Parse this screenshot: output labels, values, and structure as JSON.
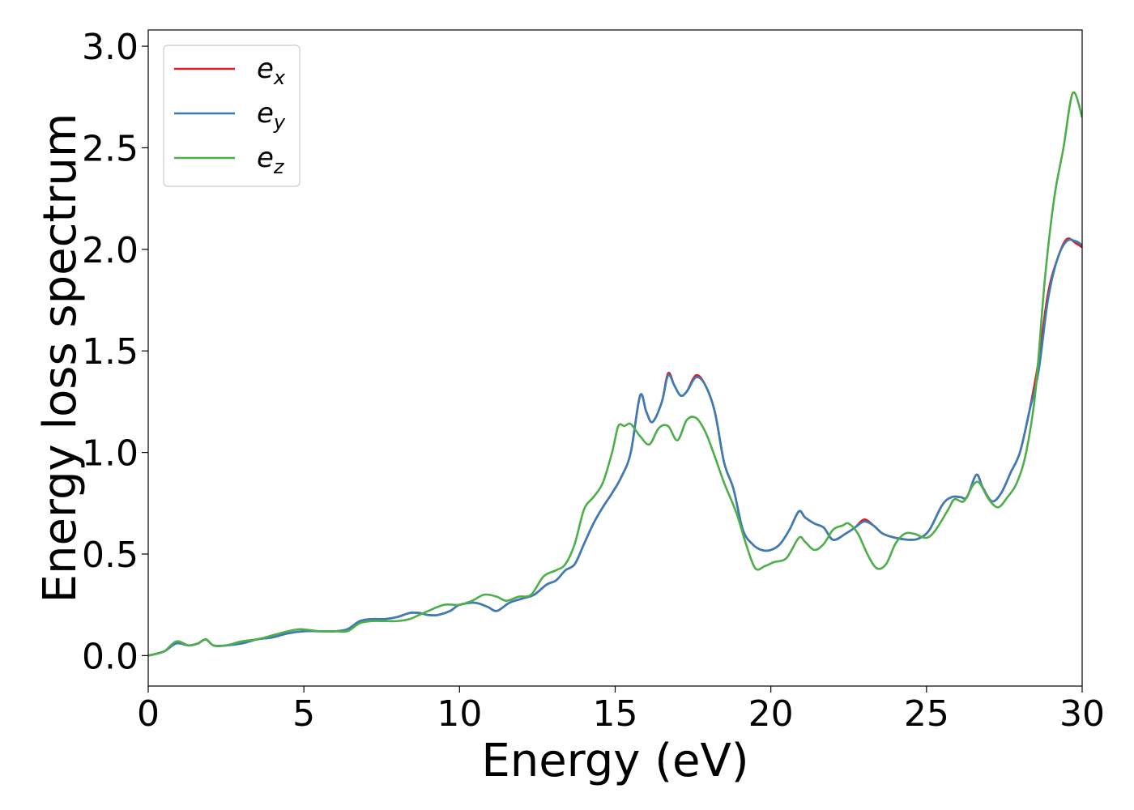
{
  "chart_data": {
    "type": "line",
    "xlabel": "Energy (eV)",
    "ylabel": "Energy loss spectrum",
    "xlim": [
      0,
      30
    ],
    "ylim": [
      -0.15,
      3.08
    ],
    "xticks": [
      0,
      5,
      10,
      15,
      20,
      25,
      30
    ],
    "xtick_labels": [
      "0",
      "5",
      "10",
      "15",
      "20",
      "25",
      "30"
    ],
    "yticks": [
      0.0,
      0.5,
      1.0,
      1.5,
      2.0,
      2.5,
      3.0
    ],
    "ytick_labels": [
      "0.0",
      "0.5",
      "1.0",
      "1.5",
      "2.0",
      "2.5",
      "3.0"
    ],
    "grid": false,
    "legend_position": "top-left",
    "series": [
      {
        "name": "e",
        "subscript": "x",
        "color": "#e41a1c",
        "points": [
          [
            0,
            0.0
          ],
          [
            0.5,
            0.02
          ],
          [
            0.9,
            0.06
          ],
          [
            1.3,
            0.05
          ],
          [
            1.6,
            0.06
          ],
          [
            1.85,
            0.08
          ],
          [
            2.1,
            0.05
          ],
          [
            2.5,
            0.05
          ],
          [
            3.0,
            0.06
          ],
          [
            3.5,
            0.08
          ],
          [
            4.0,
            0.09
          ],
          [
            4.5,
            0.11
          ],
          [
            5.0,
            0.12
          ],
          [
            5.5,
            0.12
          ],
          [
            6.0,
            0.12
          ],
          [
            6.4,
            0.13
          ],
          [
            6.8,
            0.17
          ],
          [
            7.2,
            0.18
          ],
          [
            7.6,
            0.18
          ],
          [
            8.0,
            0.19
          ],
          [
            8.4,
            0.21
          ],
          [
            8.7,
            0.21
          ],
          [
            9.0,
            0.2
          ],
          [
            9.3,
            0.2
          ],
          [
            9.7,
            0.22
          ],
          [
            10.0,
            0.25
          ],
          [
            10.5,
            0.26
          ],
          [
            10.9,
            0.24
          ],
          [
            11.2,
            0.22
          ],
          [
            11.6,
            0.26
          ],
          [
            12.0,
            0.28
          ],
          [
            12.4,
            0.3
          ],
          [
            12.8,
            0.35
          ],
          [
            13.1,
            0.37
          ],
          [
            13.4,
            0.42
          ],
          [
            13.7,
            0.45
          ],
          [
            14.0,
            0.55
          ],
          [
            14.3,
            0.65
          ],
          [
            14.6,
            0.73
          ],
          [
            14.9,
            0.8
          ],
          [
            15.2,
            0.88
          ],
          [
            15.5,
            1.0
          ],
          [
            15.8,
            1.28
          ],
          [
            16.0,
            1.2
          ],
          [
            16.2,
            1.15
          ],
          [
            16.5,
            1.25
          ],
          [
            16.7,
            1.39
          ],
          [
            16.9,
            1.33
          ],
          [
            17.1,
            1.28
          ],
          [
            17.3,
            1.3
          ],
          [
            17.6,
            1.38
          ],
          [
            17.9,
            1.33
          ],
          [
            18.2,
            1.2
          ],
          [
            18.5,
            0.95
          ],
          [
            18.8,
            0.82
          ],
          [
            19.1,
            0.62
          ],
          [
            19.4,
            0.55
          ],
          [
            19.7,
            0.52
          ],
          [
            20.0,
            0.52
          ],
          [
            20.3,
            0.55
          ],
          [
            20.6,
            0.62
          ],
          [
            20.9,
            0.71
          ],
          [
            21.1,
            0.68
          ],
          [
            21.4,
            0.65
          ],
          [
            21.7,
            0.63
          ],
          [
            22.0,
            0.57
          ],
          [
            22.4,
            0.6
          ],
          [
            22.7,
            0.63
          ],
          [
            23.0,
            0.67
          ],
          [
            23.3,
            0.64
          ],
          [
            23.6,
            0.6
          ],
          [
            24.0,
            0.58
          ],
          [
            24.5,
            0.57
          ],
          [
            24.8,
            0.58
          ],
          [
            25.1,
            0.62
          ],
          [
            25.5,
            0.74
          ],
          [
            25.8,
            0.78
          ],
          [
            26.1,
            0.78
          ],
          [
            26.3,
            0.78
          ],
          [
            26.6,
            0.89
          ],
          [
            26.8,
            0.83
          ],
          [
            27.1,
            0.76
          ],
          [
            27.4,
            0.8
          ],
          [
            27.7,
            0.9
          ],
          [
            28.0,
            1.0
          ],
          [
            28.3,
            1.2
          ],
          [
            28.6,
            1.45
          ],
          [
            28.9,
            1.78
          ],
          [
            29.2,
            1.95
          ],
          [
            29.5,
            2.05
          ],
          [
            29.8,
            2.03
          ],
          [
            30.0,
            2.01
          ]
        ]
      },
      {
        "name": "e",
        "subscript": "y",
        "color": "#377eb8",
        "points": [
          [
            0,
            0.0
          ],
          [
            0.5,
            0.02
          ],
          [
            0.9,
            0.06
          ],
          [
            1.3,
            0.05
          ],
          [
            1.6,
            0.06
          ],
          [
            1.85,
            0.08
          ],
          [
            2.1,
            0.05
          ],
          [
            2.5,
            0.05
          ],
          [
            3.0,
            0.06
          ],
          [
            3.5,
            0.08
          ],
          [
            4.0,
            0.09
          ],
          [
            4.5,
            0.11
          ],
          [
            5.0,
            0.12
          ],
          [
            5.5,
            0.12
          ],
          [
            6.0,
            0.12
          ],
          [
            6.4,
            0.13
          ],
          [
            6.8,
            0.17
          ],
          [
            7.2,
            0.18
          ],
          [
            7.6,
            0.18
          ],
          [
            8.0,
            0.19
          ],
          [
            8.4,
            0.21
          ],
          [
            8.7,
            0.21
          ],
          [
            9.0,
            0.2
          ],
          [
            9.3,
            0.2
          ],
          [
            9.7,
            0.22
          ],
          [
            10.0,
            0.25
          ],
          [
            10.5,
            0.26
          ],
          [
            10.9,
            0.24
          ],
          [
            11.2,
            0.22
          ],
          [
            11.6,
            0.26
          ],
          [
            12.0,
            0.28
          ],
          [
            12.4,
            0.3
          ],
          [
            12.8,
            0.35
          ],
          [
            13.1,
            0.37
          ],
          [
            13.4,
            0.42
          ],
          [
            13.7,
            0.45
          ],
          [
            14.0,
            0.55
          ],
          [
            14.3,
            0.65
          ],
          [
            14.6,
            0.73
          ],
          [
            14.9,
            0.8
          ],
          [
            15.2,
            0.88
          ],
          [
            15.5,
            1.0
          ],
          [
            15.8,
            1.28
          ],
          [
            16.0,
            1.2
          ],
          [
            16.2,
            1.15
          ],
          [
            16.5,
            1.25
          ],
          [
            16.7,
            1.38
          ],
          [
            16.9,
            1.33
          ],
          [
            17.1,
            1.28
          ],
          [
            17.3,
            1.3
          ],
          [
            17.6,
            1.37
          ],
          [
            17.9,
            1.33
          ],
          [
            18.2,
            1.2
          ],
          [
            18.5,
            0.95
          ],
          [
            18.8,
            0.82
          ],
          [
            19.1,
            0.62
          ],
          [
            19.4,
            0.55
          ],
          [
            19.7,
            0.52
          ],
          [
            20.0,
            0.52
          ],
          [
            20.3,
            0.55
          ],
          [
            20.6,
            0.62
          ],
          [
            20.9,
            0.71
          ],
          [
            21.1,
            0.68
          ],
          [
            21.4,
            0.65
          ],
          [
            21.7,
            0.63
          ],
          [
            22.0,
            0.57
          ],
          [
            22.4,
            0.6
          ],
          [
            22.7,
            0.63
          ],
          [
            23.0,
            0.66
          ],
          [
            23.3,
            0.64
          ],
          [
            23.6,
            0.6
          ],
          [
            24.0,
            0.58
          ],
          [
            24.5,
            0.57
          ],
          [
            24.8,
            0.58
          ],
          [
            25.1,
            0.62
          ],
          [
            25.5,
            0.74
          ],
          [
            25.8,
            0.78
          ],
          [
            26.1,
            0.78
          ],
          [
            26.3,
            0.78
          ],
          [
            26.6,
            0.89
          ],
          [
            26.8,
            0.83
          ],
          [
            27.1,
            0.76
          ],
          [
            27.4,
            0.8
          ],
          [
            27.7,
            0.9
          ],
          [
            28.0,
            1.0
          ],
          [
            28.3,
            1.2
          ],
          [
            28.6,
            1.4
          ],
          [
            28.9,
            1.75
          ],
          [
            29.2,
            1.95
          ],
          [
            29.5,
            2.04
          ],
          [
            29.8,
            2.04
          ],
          [
            30.0,
            2.02
          ]
        ]
      },
      {
        "name": "e",
        "subscript": "z",
        "color": "#4daf4a",
        "points": [
          [
            0,
            0.0
          ],
          [
            0.5,
            0.02
          ],
          [
            0.9,
            0.07
          ],
          [
            1.3,
            0.05
          ],
          [
            1.6,
            0.06
          ],
          [
            1.85,
            0.08
          ],
          [
            2.1,
            0.05
          ],
          [
            2.5,
            0.05
          ],
          [
            3.0,
            0.07
          ],
          [
            3.5,
            0.08
          ],
          [
            4.0,
            0.1
          ],
          [
            4.5,
            0.12
          ],
          [
            4.9,
            0.13
          ],
          [
            5.5,
            0.12
          ],
          [
            6.0,
            0.12
          ],
          [
            6.4,
            0.12
          ],
          [
            6.8,
            0.16
          ],
          [
            7.2,
            0.17
          ],
          [
            7.6,
            0.17
          ],
          [
            8.0,
            0.17
          ],
          [
            8.4,
            0.18
          ],
          [
            8.7,
            0.2
          ],
          [
            9.0,
            0.22
          ],
          [
            9.5,
            0.25
          ],
          [
            10.0,
            0.25
          ],
          [
            10.4,
            0.27
          ],
          [
            10.8,
            0.3
          ],
          [
            11.2,
            0.29
          ],
          [
            11.5,
            0.27
          ],
          [
            11.9,
            0.29
          ],
          [
            12.3,
            0.3
          ],
          [
            12.7,
            0.39
          ],
          [
            13.1,
            0.42
          ],
          [
            13.4,
            0.45
          ],
          [
            13.7,
            0.55
          ],
          [
            14.0,
            0.72
          ],
          [
            14.3,
            0.78
          ],
          [
            14.6,
            0.85
          ],
          [
            14.9,
            1.0
          ],
          [
            15.1,
            1.13
          ],
          [
            15.3,
            1.13
          ],
          [
            15.5,
            1.14
          ],
          [
            15.8,
            1.08
          ],
          [
            16.1,
            1.04
          ],
          [
            16.4,
            1.12
          ],
          [
            16.7,
            1.13
          ],
          [
            17.0,
            1.06
          ],
          [
            17.3,
            1.16
          ],
          [
            17.6,
            1.17
          ],
          [
            17.9,
            1.1
          ],
          [
            18.2,
            0.98
          ],
          [
            18.5,
            0.85
          ],
          [
            18.9,
            0.7
          ],
          [
            19.2,
            0.55
          ],
          [
            19.5,
            0.43
          ],
          [
            19.8,
            0.44
          ],
          [
            20.1,
            0.46
          ],
          [
            20.5,
            0.48
          ],
          [
            20.9,
            0.58
          ],
          [
            21.1,
            0.56
          ],
          [
            21.4,
            0.52
          ],
          [
            21.7,
            0.55
          ],
          [
            22.0,
            0.62
          ],
          [
            22.3,
            0.64
          ],
          [
            22.5,
            0.65
          ],
          [
            22.8,
            0.6
          ],
          [
            23.1,
            0.5
          ],
          [
            23.4,
            0.43
          ],
          [
            23.7,
            0.45
          ],
          [
            24.0,
            0.55
          ],
          [
            24.3,
            0.6
          ],
          [
            24.6,
            0.6
          ],
          [
            25.0,
            0.58
          ],
          [
            25.3,
            0.62
          ],
          [
            25.7,
            0.72
          ],
          [
            25.9,
            0.77
          ],
          [
            26.2,
            0.76
          ],
          [
            26.5,
            0.84
          ],
          [
            26.7,
            0.85
          ],
          [
            27.0,
            0.77
          ],
          [
            27.3,
            0.73
          ],
          [
            27.6,
            0.78
          ],
          [
            27.9,
            0.85
          ],
          [
            28.2,
            1.0
          ],
          [
            28.5,
            1.3
          ],
          [
            28.8,
            1.85
          ],
          [
            29.1,
            2.25
          ],
          [
            29.4,
            2.5
          ],
          [
            29.7,
            2.77
          ],
          [
            30.0,
            2.65
          ]
        ]
      }
    ]
  }
}
